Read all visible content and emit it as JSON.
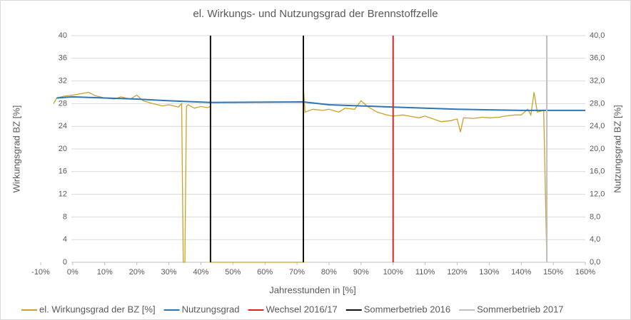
{
  "chart_data": {
    "type": "line",
    "title": "el. Wirkungs- und Nutzungsgrad der Brennstoffzelle",
    "x_label": "Jahresstunden in [%]",
    "y_label": "Wirkungsgrad BZ [%]",
    "y2_label": "Nutzungsgrad BZ [%]",
    "xlim": [
      -10,
      160
    ],
    "xticks": [
      {
        "value": -10,
        "label": "-10%"
      },
      {
        "value": 0,
        "label": "0%"
      },
      {
        "value": 10,
        "label": "10%"
      },
      {
        "value": 20,
        "label": "20%"
      },
      {
        "value": 30,
        "label": "30%"
      },
      {
        "value": 40,
        "label": "40%"
      },
      {
        "value": 50,
        "label": "50%"
      },
      {
        "value": 60,
        "label": "60%"
      },
      {
        "value": 70,
        "label": "70%"
      },
      {
        "value": 80,
        "label": "80%"
      },
      {
        "value": 90,
        "label": "90%"
      },
      {
        "value": 100,
        "label": "100%"
      },
      {
        "value": 110,
        "label": "110%"
      },
      {
        "value": 120,
        "label": "120%"
      },
      {
        "value": 130,
        "label": "130%"
      },
      {
        "value": 140,
        "label": "140%"
      },
      {
        "value": 150,
        "label": "150%"
      },
      {
        "value": 160,
        "label": "160%"
      }
    ],
    "ylim": [
      0,
      40
    ],
    "yticks": [
      0,
      4,
      8,
      12,
      16,
      20,
      24,
      28,
      32,
      36,
      40
    ],
    "y2lim": [
      0,
      40
    ],
    "y2ticks": [
      {
        "value": 0,
        "label": "0,0"
      },
      {
        "value": 4,
        "label": "4,0"
      },
      {
        "value": 8,
        "label": "8,0"
      },
      {
        "value": 12,
        "label": "12,0"
      },
      {
        "value": 16,
        "label": "16,0"
      },
      {
        "value": 20,
        "label": "20,0"
      },
      {
        "value": 24,
        "label": "24,0"
      },
      {
        "value": 28,
        "label": "28,0"
      },
      {
        "value": 32,
        "label": "32,0"
      },
      {
        "value": 36,
        "label": "36,0"
      },
      {
        "value": 40,
        "label": "40,0"
      }
    ],
    "grid": true,
    "legend": "bottom",
    "series": [
      {
        "name": "el. Wirkungsgrad der BZ [%]",
        "color": "#c9a227",
        "x": [
          -6,
          -5,
          -3,
          0,
          3,
          5,
          7,
          10,
          13,
          15,
          18,
          20,
          22,
          25,
          28,
          30,
          33,
          34,
          34.5,
          35,
          35.5,
          36,
          38,
          40,
          42,
          43,
          43,
          72,
          72,
          72.5,
          75,
          78,
          80,
          83,
          85,
          88,
          90,
          92,
          95,
          98,
          100,
          103,
          105,
          108,
          110,
          113,
          115,
          118,
          120,
          121,
          122,
          125,
          128,
          130,
          133,
          135,
          138,
          140,
          142,
          143,
          144,
          145,
          147,
          148
        ],
        "values": [
          28,
          29,
          29.3,
          29.5,
          29.8,
          30,
          29.4,
          29,
          28.8,
          29.2,
          28.8,
          29.5,
          28.5,
          28,
          27.6,
          27.8,
          27.4,
          28,
          0,
          0,
          27.5,
          27.8,
          27.2,
          27.5,
          27.3,
          27.5,
          0,
          0,
          31,
          26.5,
          27,
          26.8,
          27,
          26.5,
          27.2,
          27,
          28.5,
          27.5,
          26.5,
          26,
          25.8,
          26,
          25.8,
          25.5,
          25.8,
          25.2,
          24.8,
          25,
          25.3,
          23,
          25.5,
          25.4,
          25.6,
          25.5,
          25.6,
          25.8,
          26,
          26,
          27,
          26,
          30,
          26.5,
          26.8,
          0
        ]
      },
      {
        "name": "Nutzungsgrad",
        "color": "#2e75b6",
        "axis": "y2",
        "x": [
          -5,
          0,
          10,
          20,
          30,
          43,
          72,
          80,
          90,
          100,
          110,
          120,
          130,
          140,
          160
        ],
        "values": [
          29,
          29.2,
          29,
          28.8,
          28.5,
          28.2,
          28.3,
          27.8,
          27.6,
          27.4,
          27.2,
          27,
          26.9,
          26.8,
          26.8
        ]
      },
      {
        "name": "Wechsel 2016/17",
        "color": "#e02020",
        "x": [
          100,
          100
        ],
        "values": [
          0,
          40
        ]
      },
      {
        "name": "Sommerbetrieb 2016",
        "color": "#111111",
        "x": [
          43,
          43,
          72,
          72,
          72
        ],
        "values": [
          0,
          40,
          null,
          0,
          40
        ]
      },
      {
        "name": "Sommerbetrieb 2017",
        "color": "#bfbfbf",
        "x": [
          148,
          148
        ],
        "values": [
          0,
          40
        ]
      }
    ]
  }
}
